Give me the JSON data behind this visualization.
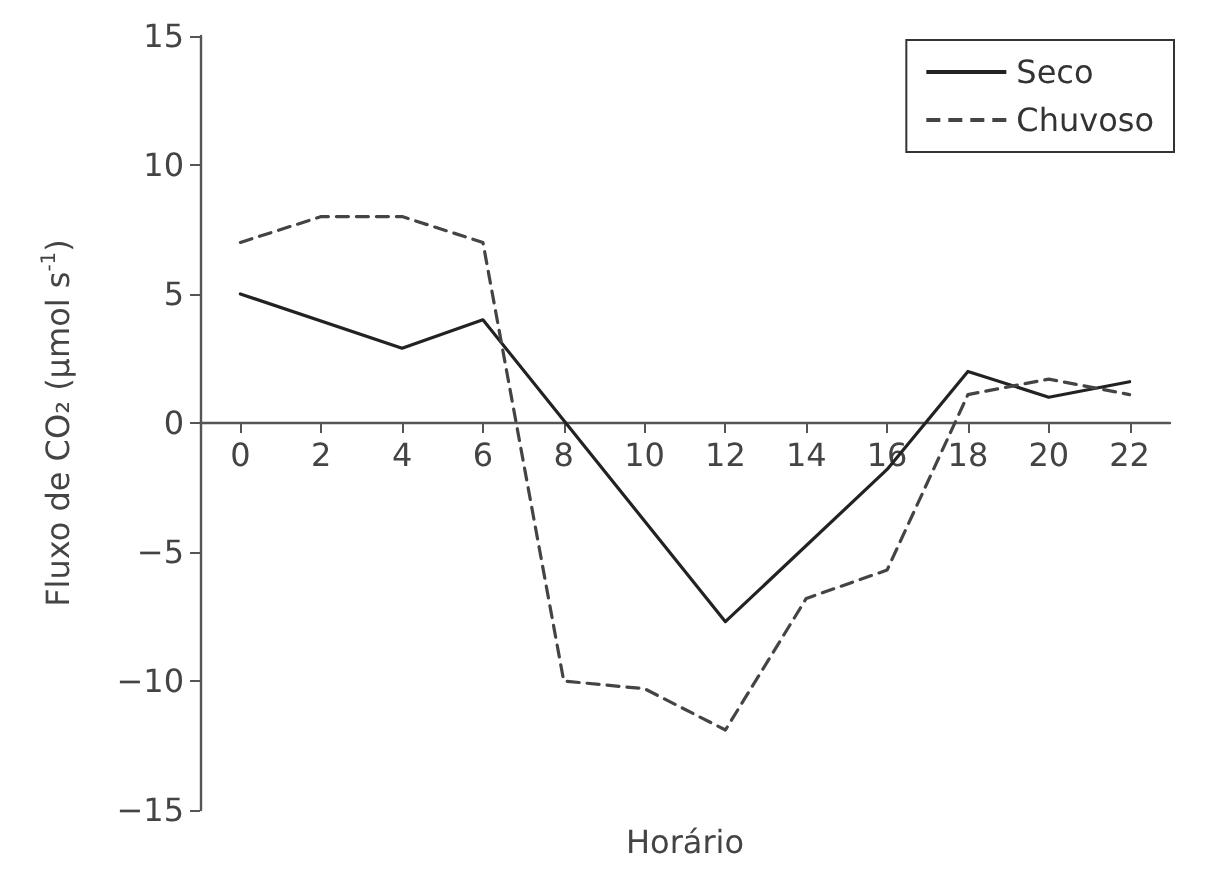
{
  "chart_data": {
    "type": "line",
    "xlabel": "Horário",
    "ylabel": "Fluxo de CO₂ (μmol s$^{-1}$)",
    "x": [
      0,
      2,
      4,
      6,
      8,
      10,
      12,
      14,
      16,
      18,
      20,
      22
    ],
    "xlim": [
      -1,
      23
    ],
    "xticks": [
      0,
      2,
      4,
      6,
      8,
      10,
      12,
      14,
      16,
      18,
      20,
      22
    ],
    "ylim": [
      -15,
      15
    ],
    "yticks": [
      -15,
      -10,
      -5,
      0,
      5,
      10,
      15
    ],
    "series": [
      {
        "name": "Seco",
        "color": "#222222",
        "line_style": "solid",
        "x": [
          0,
          4,
          6,
          12,
          16,
          18,
          20,
          22
        ],
        "values": [
          5,
          2.9,
          4,
          -7.7,
          -1.8,
          2,
          1,
          1.6
        ]
      },
      {
        "name": "Chuvoso",
        "color": "#444444",
        "line_style": "dashed",
        "values": [
          7,
          8,
          8,
          7,
          -10,
          -10.3,
          -11.9,
          -6.8,
          -5.7,
          1.1,
          1.7,
          1.1
        ]
      }
    ],
    "legend": "top right",
    "grid": false,
    "marker": "none"
  }
}
